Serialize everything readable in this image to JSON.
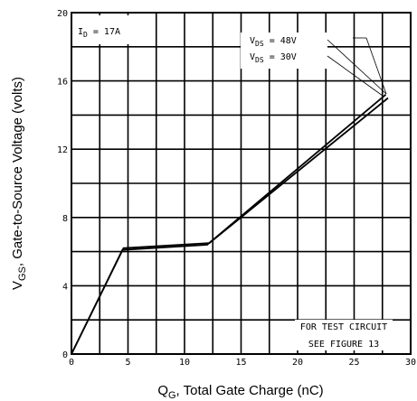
{
  "chart_data": {
    "type": "line",
    "xlabel_parts": {
      "sym": "Q",
      "sub": "G",
      "rest": ", Total Gate Charge (nC)"
    },
    "ylabel_parts": {
      "sym": "V",
      "sub": "GS",
      "rest": ", Gate-to-Source Voltage (volts)"
    },
    "xlim": [
      0,
      30
    ],
    "ylim": [
      0,
      20
    ],
    "x_ticks": [
      0,
      5,
      10,
      15,
      20,
      25,
      30
    ],
    "y_ticks": [
      0,
      4,
      8,
      12,
      16,
      20
    ],
    "grid": true,
    "series": [
      {
        "name": "VDS = 48V",
        "color": "#000000",
        "points": [
          [
            0,
            0
          ],
          [
            4.6,
            6.2
          ],
          [
            12.2,
            6.5
          ],
          [
            28.0,
            15.0
          ]
        ]
      },
      {
        "name": "VDS = 30V",
        "color": "#000000",
        "points": [
          [
            0,
            0
          ],
          [
            4.5,
            6.1
          ],
          [
            12.0,
            6.4
          ],
          [
            27.8,
            15.2
          ]
        ]
      }
    ],
    "annotations": {
      "id": {
        "pre": "I",
        "sub": "D",
        "post": " = 17A"
      },
      "legend": [
        {
          "pre": "V",
          "sub": "DS",
          "post": " =  48V"
        },
        {
          "pre": "V",
          "sub": "DS",
          "post": " =  30V"
        }
      ],
      "note_line1": "FOR TEST CIRCUIT",
      "note_line2": "SEE FIGURE 13"
    }
  }
}
